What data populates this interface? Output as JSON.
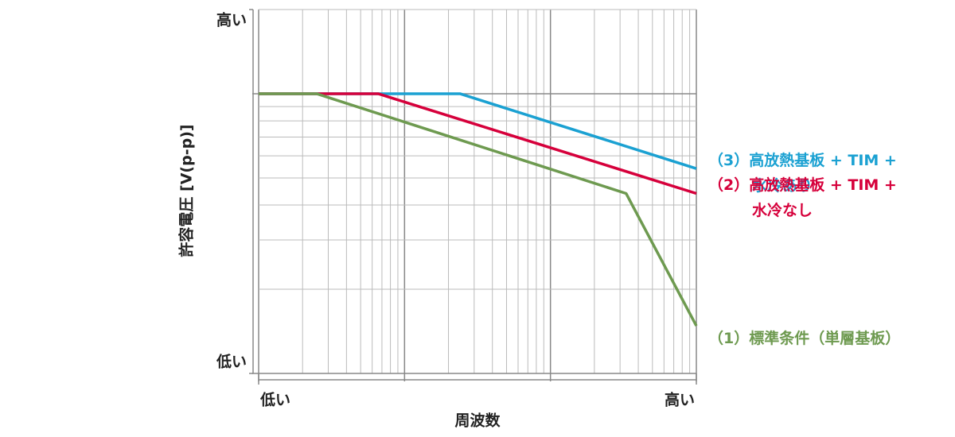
{
  "chart_data": {
    "type": "line",
    "x_label": "周波数",
    "y_label": "許容電圧 [V(p-p)]",
    "log_x": true,
    "log_y": true,
    "grid": true,
    "xlim": [
      1,
      1000
    ],
    "xticks": [
      {
        "value": 1,
        "label": "低い"
      },
      {
        "value": 1000,
        "label": "高い"
      }
    ],
    "ylim": [
      1,
      20
    ],
    "yticks": [
      {
        "value": 1,
        "label": "低い"
      },
      {
        "value": 20,
        "label": "高い"
      }
    ],
    "series": [
      {
        "name": "（3）高放熱基板 + TIM +\n水冷あり",
        "color": "#1ba1d2",
        "x": [
          1,
          24,
          1000
        ],
        "values": [
          10,
          10,
          5.4
        ]
      },
      {
        "name": "（2）高放熱基板 + TIM +\n水冷なし",
        "color": "#d6003b",
        "x": [
          1,
          6.6,
          1000
        ],
        "values": [
          10,
          10,
          4.4
        ]
      },
      {
        "name": "（1）標準条件（単層基板）",
        "color": "#6e9a50",
        "x": [
          1,
          2.5,
          330,
          1000
        ],
        "values": [
          10,
          10,
          4.4,
          1.48
        ]
      }
    ]
  }
}
